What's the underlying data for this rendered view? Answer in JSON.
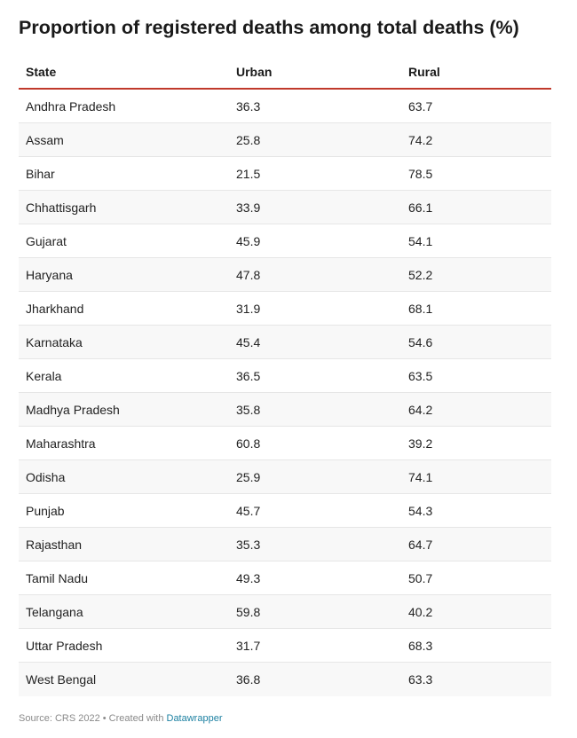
{
  "chart_data": {
    "type": "table",
    "title": "Proportion of registered deaths among total deaths (%)",
    "columns": [
      "State",
      "Urban",
      "Rural"
    ],
    "rows": [
      [
        "Andhra Pradesh",
        "36.3",
        "63.7"
      ],
      [
        "Assam",
        "25.8",
        "74.2"
      ],
      [
        "Bihar",
        "21.5",
        "78.5"
      ],
      [
        "Chhattisgarh",
        "33.9",
        "66.1"
      ],
      [
        "Gujarat",
        "45.9",
        "54.1"
      ],
      [
        "Haryana",
        "47.8",
        "52.2"
      ],
      [
        "Jharkhand",
        "31.9",
        "68.1"
      ],
      [
        "Karnataka",
        "45.4",
        "54.6"
      ],
      [
        "Kerala",
        "36.5",
        "63.5"
      ],
      [
        "Madhya Pradesh",
        "35.8",
        "64.2"
      ],
      [
        "Maharashtra",
        "60.8",
        "39.2"
      ],
      [
        "Odisha",
        "25.9",
        "74.1"
      ],
      [
        "Punjab",
        "45.7",
        "54.3"
      ],
      [
        "Rajasthan",
        "35.3",
        "64.7"
      ],
      [
        "Tamil Nadu",
        "49.3",
        "50.7"
      ],
      [
        "Telangana",
        "59.8",
        "40.2"
      ],
      [
        "Uttar Pradesh",
        "31.7",
        "68.3"
      ],
      [
        "West Bengal",
        "36.8",
        "63.3"
      ]
    ],
    "header_rule_color": "#c0392b",
    "stripe_color": "#f8f8f8"
  },
  "footer": {
    "source_text": "Source: CRS 2022 • Created with ",
    "link_text": "Datawrapper",
    "link_color": "#1d81a2"
  }
}
